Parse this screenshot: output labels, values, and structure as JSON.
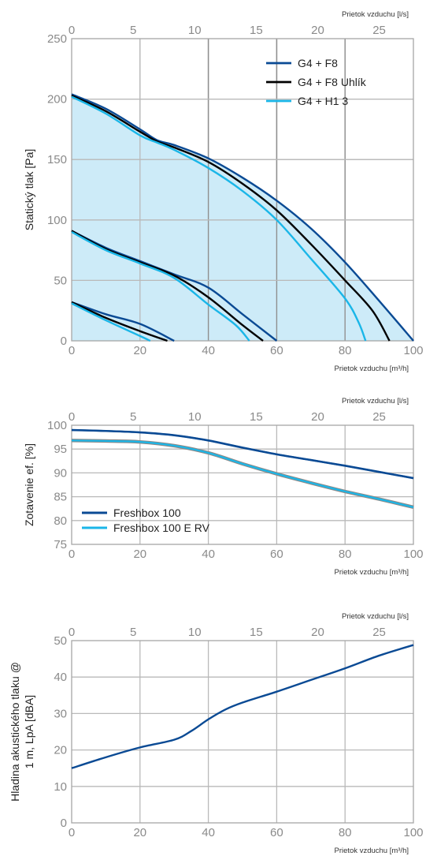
{
  "chart_data": [
    {
      "type": "line",
      "title": "",
      "xlabel": "Prietok vzduchu [m³/h]",
      "x2label": "Prietok vzduchu [l/s]",
      "ylabel": "Statický tlak [Pa]",
      "xlim": [
        0,
        100
      ],
      "x2lim": [
        0,
        27.78
      ],
      "ylim": [
        0,
        250
      ],
      "xticks": [
        "0",
        "20",
        "40",
        "60",
        "80",
        "100"
      ],
      "x2ticks": [
        "0",
        "5",
        "10",
        "15",
        "20",
        "25"
      ],
      "yticks": [
        "0",
        "50",
        "100",
        "150",
        "200",
        "250"
      ],
      "grid": true,
      "legend_position": "top-right",
      "colors": {
        "navy": "#0a4a94",
        "black": "#000000",
        "cyan": "#1ab6e8",
        "fill": "#cdebf8",
        "grid": "#b9b9b9",
        "gridDark": "#8f8f8f"
      },
      "legend": [
        "G4 + F8",
        "G4 + F8  Uhlík",
        "G4 + H1 3"
      ],
      "series": [
        {
          "name": "G4 + F8",
          "color": "navy",
          "x": [
            0,
            10,
            20,
            25,
            30,
            40,
            50,
            60,
            70,
            80,
            90,
            100
          ],
          "y": [
            204,
            192,
            175,
            166,
            162,
            151,
            135,
            116,
            93,
            65,
            33,
            0
          ]
        },
        {
          "name": "G4 + F8  Uhlík",
          "color": "black",
          "x": [
            0,
            10,
            20,
            25,
            30,
            40,
            50,
            60,
            70,
            80,
            88,
            93
          ],
          "y": [
            203,
            190,
            173,
            165,
            160,
            148,
            130,
            108,
            80,
            50,
            25,
            0
          ]
        },
        {
          "name": "G4 + H1 3",
          "color": "cyan",
          "x": [
            0,
            10,
            20,
            25,
            30,
            40,
            50,
            60,
            70,
            80,
            84,
            86
          ],
          "y": [
            202,
            188,
            170,
            164,
            158,
            143,
            124,
            100,
            68,
            35,
            15,
            0
          ]
        },
        {
          "name": "",
          "color": "navy",
          "x": [
            0,
            10,
            20,
            30,
            40,
            50,
            60
          ],
          "y": [
            91,
            77,
            66,
            55,
            44,
            22,
            0
          ]
        },
        {
          "name": "",
          "color": "black",
          "x": [
            0,
            10,
            20,
            30,
            40,
            50,
            56
          ],
          "y": [
            91,
            76,
            65,
            54,
            36,
            13,
            0
          ]
        },
        {
          "name": "",
          "color": "cyan",
          "x": [
            0,
            10,
            20,
            30,
            40,
            48,
            52
          ],
          "y": [
            90,
            75,
            64,
            52,
            30,
            13,
            0
          ]
        },
        {
          "name": "",
          "color": "navy",
          "x": [
            0,
            10,
            20,
            30
          ],
          "y": [
            32,
            22,
            14,
            0
          ]
        },
        {
          "name": "",
          "color": "black",
          "x": [
            0,
            10,
            20,
            28
          ],
          "y": [
            32,
            19,
            8,
            0
          ]
        },
        {
          "name": "",
          "color": "cyan",
          "x": [
            0,
            10,
            20,
            23
          ],
          "y": [
            31,
            17,
            4,
            0
          ]
        }
      ]
    },
    {
      "type": "line",
      "title": "",
      "xlabel": "Prietok vzduchu [m³/h]",
      "x2label": "Prietok vzduchu [l/s]",
      "ylabel": "Zotavenie ef. [%]",
      "xlim": [
        0,
        100
      ],
      "x2lim": [
        0,
        27.78
      ],
      "ylim": [
        75,
        100
      ],
      "xticks": [
        "0",
        "20",
        "40",
        "60",
        "80",
        "100"
      ],
      "x2ticks": [
        "0",
        "5",
        "10",
        "15",
        "20",
        "25"
      ],
      "yticks": [
        "75",
        "80",
        "85",
        "90",
        "95",
        "100"
      ],
      "grid": true,
      "legend_position": "bottom-left",
      "colors": {
        "navy": "#0a4a94",
        "cyan": "#1ab6e8",
        "grid": "#b9b9b9"
      },
      "legend": [
        "Freshbox 100",
        "Freshbox 100 E RV"
      ],
      "series": [
        {
          "name": "Freshbox 100",
          "color": "navy",
          "x": [
            0,
            10,
            20,
            30,
            40,
            50,
            60,
            70,
            80,
            90,
            100
          ],
          "y": [
            99,
            98.8,
            98.5,
            97.9,
            96.8,
            95.3,
            93.9,
            92.7,
            91.5,
            90.2,
            88.9
          ]
        },
        {
          "name": "Freshbox 100 E RV",
          "color": "cyan",
          "x": [
            0,
            10,
            20,
            30,
            40,
            50,
            60,
            70,
            80,
            90,
            100
          ],
          "y": [
            96.8,
            96.7,
            96.5,
            95.7,
            94.2,
            91.9,
            89.8,
            87.9,
            86.1,
            84.5,
            82.8
          ]
        }
      ]
    },
    {
      "type": "line",
      "title": "",
      "xlabel": "Prietok vzduchu [m³/h]",
      "x2label": "Prietok vzduchu [l/s]",
      "ylabel": [
        "Hladina akustického tlaku @",
        "1 m, LpA [dBA]"
      ],
      "xlim": [
        0,
        100
      ],
      "x2lim": [
        0,
        27.78
      ],
      "ylim": [
        0,
        50
      ],
      "xticks": [
        "0",
        "20",
        "40",
        "60",
        "80",
        "100"
      ],
      "x2ticks": [
        "0",
        "5",
        "10",
        "15",
        "20",
        "25"
      ],
      "yticks": [
        "0",
        "10",
        "20",
        "30",
        "40",
        "50"
      ],
      "grid": true,
      "colors": {
        "navy": "#0a4a94",
        "grid": "#b9b9b9"
      },
      "series": [
        {
          "name": "",
          "color": "navy",
          "x": [
            0,
            10,
            20,
            30,
            35,
            40,
            45,
            50,
            60,
            70,
            80,
            90,
            100
          ],
          "y": [
            15,
            18,
            20.7,
            22.8,
            25.2,
            28.4,
            31.1,
            33,
            36,
            39.2,
            42.4,
            45.9,
            48.8
          ]
        }
      ]
    }
  ]
}
